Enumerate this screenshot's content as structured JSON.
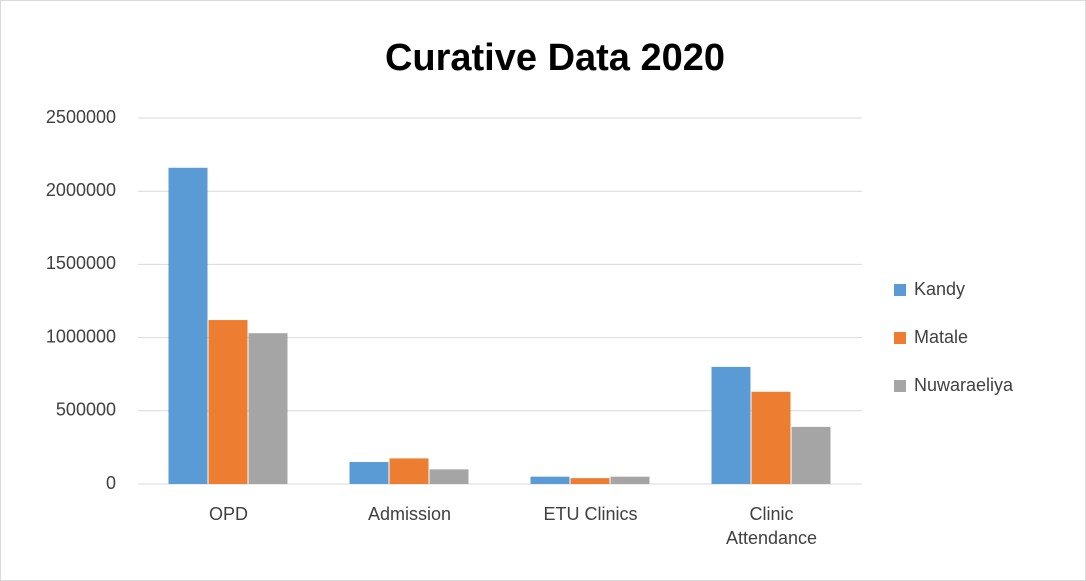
{
  "chart_data": {
    "type": "bar",
    "title": "Curative Data 2020",
    "categories": [
      "OPD",
      "Admission",
      "ETU Clinics",
      "Clinic Attendance"
    ],
    "series": [
      {
        "name": "Kandy",
        "color": "#5b9bd5",
        "values": [
          2160000,
          150000,
          50000,
          800000
        ]
      },
      {
        "name": "Matale",
        "color": "#ed7d31",
        "values": [
          1120000,
          175000,
          40000,
          630000
        ]
      },
      {
        "name": "Nuwaraeliya",
        "color": "#a5a5a5",
        "values": [
          1030000,
          100000,
          50000,
          390000
        ]
      }
    ],
    "ylim": [
      0,
      2500000
    ],
    "yticks": [
      0,
      500000,
      1000000,
      1500000,
      2000000,
      2500000
    ],
    "grid": true,
    "legend": "right"
  }
}
